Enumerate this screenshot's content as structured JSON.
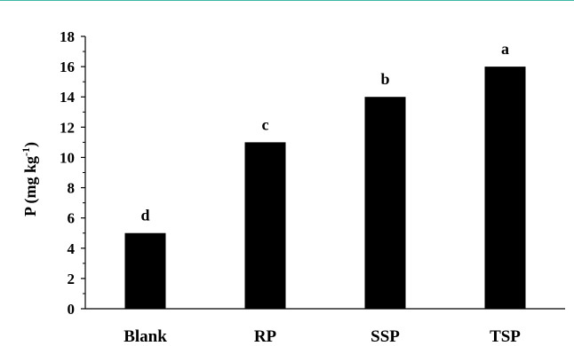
{
  "chart_data": {
    "type": "bar",
    "categories": [
      "Blank",
      "RP",
      "SSP",
      "TSP"
    ],
    "values": [
      5,
      11,
      14,
      16
    ],
    "data_labels": [
      "d",
      "c",
      "b",
      "a"
    ],
    "ylabel_main": "P (mg kg",
    "ylabel_sup": "-1",
    "ylabel_end": ")",
    "ylim": [
      0,
      18
    ],
    "yticks": [
      0,
      2,
      4,
      6,
      8,
      10,
      12,
      14,
      16,
      18
    ],
    "grid": false,
    "legend": "none",
    "colors": {
      "bar": "#000000",
      "axis": "#000000",
      "accent_rule": "#3fb8a6"
    }
  }
}
